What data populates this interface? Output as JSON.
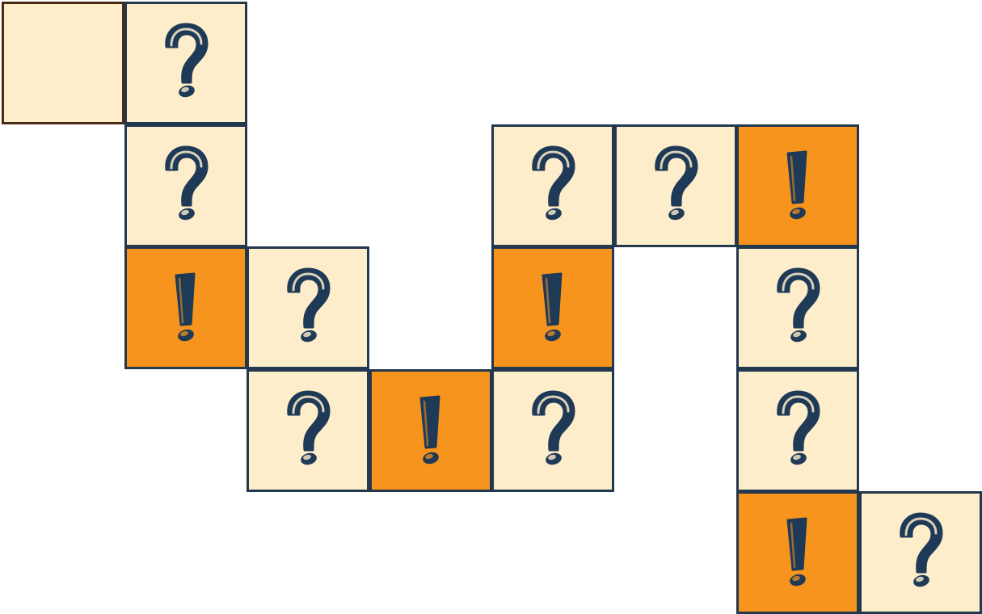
{
  "board": {
    "colors": {
      "question_bg": "#fdedca",
      "exclaim_bg": "#f7941d",
      "start_bg": "#fdedca",
      "border": "#22384f",
      "start_border": "#4a2a14",
      "glyph": "#1f3a57"
    },
    "tiles": [
      {
        "row": 0,
        "col": 0,
        "type": "start"
      },
      {
        "row": 0,
        "col": 1,
        "type": "question"
      },
      {
        "row": 1,
        "col": 1,
        "type": "question"
      },
      {
        "row": 2,
        "col": 1,
        "type": "exclaim"
      },
      {
        "row": 2,
        "col": 2,
        "type": "question"
      },
      {
        "row": 3,
        "col": 2,
        "type": "question"
      },
      {
        "row": 3,
        "col": 3,
        "type": "exclaim"
      },
      {
        "row": 3,
        "col": 4,
        "type": "question"
      },
      {
        "row": 2,
        "col": 4,
        "type": "exclaim"
      },
      {
        "row": 1,
        "col": 4,
        "type": "question"
      },
      {
        "row": 1,
        "col": 5,
        "type": "question"
      },
      {
        "row": 1,
        "col": 6,
        "type": "exclaim"
      },
      {
        "row": 2,
        "col": 6,
        "type": "question"
      },
      {
        "row": 3,
        "col": 6,
        "type": "question"
      },
      {
        "row": 4,
        "col": 6,
        "type": "exclaim"
      },
      {
        "row": 4,
        "col": 7,
        "type": "question"
      }
    ]
  }
}
